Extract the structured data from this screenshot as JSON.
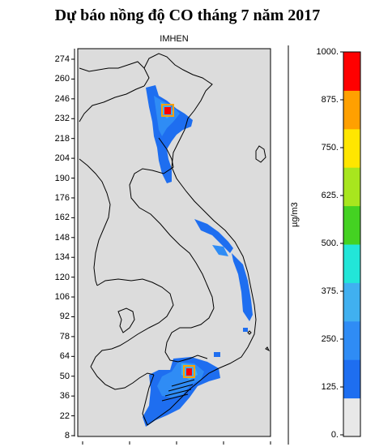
{
  "title": "Dự báo nồng độ CO tháng 7 năm 2017",
  "subtitle": "IMHEN",
  "unit": "µg/m3",
  "y_ticks": [
    "274",
    "260",
    "246",
    "232",
    "218",
    "204",
    "190",
    "176",
    "162",
    "148",
    "134",
    "120",
    "106",
    "92",
    "78",
    "64",
    "50",
    "36",
    "22",
    "8"
  ],
  "colorbar": {
    "ticks": [
      "1000.",
      "875.",
      "750.",
      "625.",
      "500.",
      "375.",
      "250.",
      "125.",
      "0."
    ],
    "colors": [
      "#e8e8e8",
      "#1e6ef0",
      "#2f8cf5",
      "#40b0f0",
      "#22e6d8",
      "#44d222",
      "#a8e61e",
      "#ffe600",
      "#ffa000",
      "#ff0000"
    ]
  },
  "map": {
    "background_color": "#dcdcdc",
    "coast_color": "#000000"
  }
}
